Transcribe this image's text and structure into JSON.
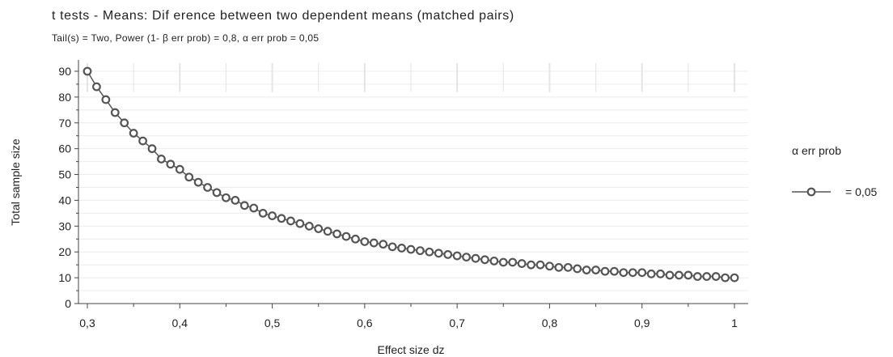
{
  "chart_data": {
    "type": "line",
    "title": "t tests - Means: Dif erence between two dependent means (matched pairs)",
    "subtitle": "Tail(s) = Two, Power (1- β err prob) = 0,8, α err prob = 0,05",
    "xlabel": "Effect size dz",
    "ylabel": "Total sample size",
    "xlim": [
      0.3,
      1.0
    ],
    "ylim": [
      0,
      90
    ],
    "x_ticks": [
      "0,3",
      "0,4",
      "0,5",
      "0,6",
      "0,7",
      "0,8",
      "0,9",
      "1"
    ],
    "y_ticks": [
      "0",
      "10",
      "20",
      "30",
      "40",
      "50",
      "60",
      "70",
      "80",
      "90"
    ],
    "grid": true,
    "legend": {
      "title": "α err prob",
      "placement": "right",
      "entries": [
        "= 0,05"
      ]
    },
    "series": [
      {
        "name": "= 0,05",
        "color": "#555555",
        "marker": "circle",
        "x": [
          0.3,
          0.31,
          0.32,
          0.33,
          0.34,
          0.35,
          0.36,
          0.37,
          0.38,
          0.39,
          0.4,
          0.41,
          0.42,
          0.43,
          0.44,
          0.45,
          0.46,
          0.47,
          0.48,
          0.49,
          0.5,
          0.51,
          0.52,
          0.53,
          0.54,
          0.55,
          0.56,
          0.57,
          0.58,
          0.59,
          0.6,
          0.61,
          0.62,
          0.63,
          0.64,
          0.65,
          0.66,
          0.67,
          0.68,
          0.69,
          0.7,
          0.71,
          0.72,
          0.73,
          0.74,
          0.75,
          0.76,
          0.77,
          0.78,
          0.79,
          0.8,
          0.81,
          0.82,
          0.83,
          0.84,
          0.85,
          0.86,
          0.87,
          0.88,
          0.89,
          0.9,
          0.91,
          0.92,
          0.93,
          0.94,
          0.95,
          0.96,
          0.97,
          0.98,
          0.99,
          1.0
        ],
        "y": [
          90,
          84,
          79,
          74,
          70,
          66,
          63,
          60,
          56,
          54,
          52,
          49,
          47,
          45,
          43,
          41,
          40,
          38,
          37,
          35,
          34,
          33,
          32,
          31,
          30,
          29,
          28,
          27,
          26,
          25,
          24,
          23.5,
          23,
          22,
          21.5,
          21,
          20.5,
          20,
          19.5,
          19,
          18.5,
          18,
          17.5,
          17,
          16.5,
          16,
          16,
          15.5,
          15,
          15,
          14.5,
          14,
          14,
          13.5,
          13,
          13,
          12.5,
          12.5,
          12,
          12,
          12,
          11.5,
          11.5,
          11,
          11,
          11,
          10.5,
          10.5,
          10.5,
          10,
          10
        ]
      }
    ]
  },
  "colors": {
    "line": "#555555",
    "grid": "#e6e6e6",
    "axis": "#444444"
  }
}
